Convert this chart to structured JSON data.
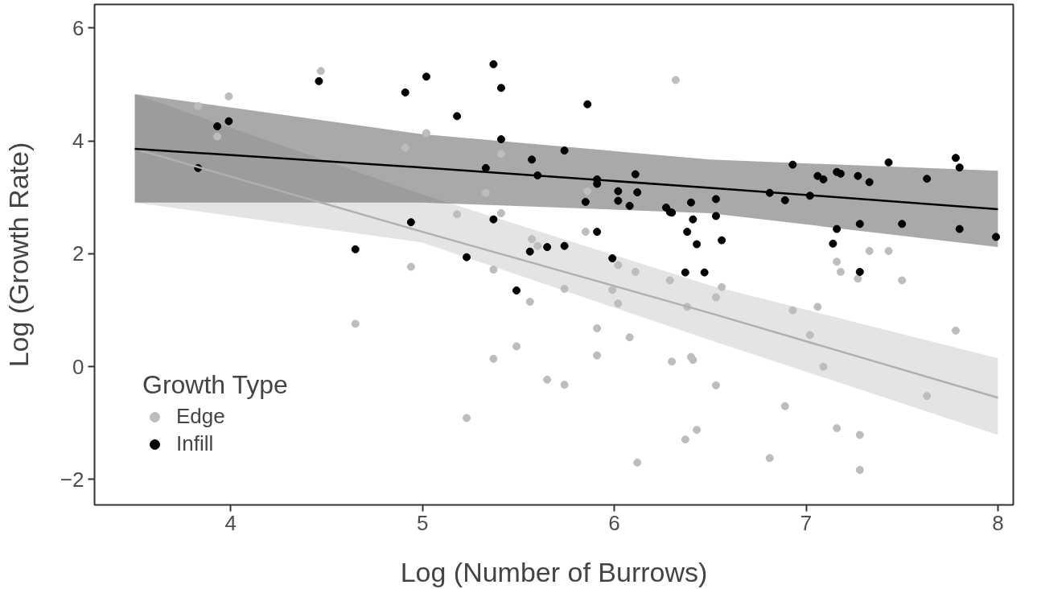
{
  "chart_data": {
    "type": "scatter",
    "xlabel": "Log (Number of Burrows)",
    "ylabel": "Log (Growth Rate)",
    "legend_title": "Growth Type",
    "xlim": [
      3.29,
      8.08
    ],
    "ylim": [
      -2.45,
      6.42
    ],
    "xticks": [
      4,
      5,
      6,
      7,
      8
    ],
    "yticks": [
      -2,
      0,
      2,
      4,
      6
    ],
    "grid": false,
    "legend": "bottom left",
    "marker": "circle",
    "series": [
      {
        "name": "Edge",
        "color": "#bdbdbd",
        "x": [
          4.47,
          3.99,
          3.83,
          3.93,
          4.65,
          4.91,
          5.02,
          5.41,
          5.33,
          5.86,
          6.32,
          5.18,
          5.41,
          4.94,
          5.37,
          5.57,
          5.6,
          5.85,
          6.02,
          6.11,
          6.29,
          5.74,
          5.99,
          5.56,
          6.02,
          6.38,
          5.91,
          6.08,
          5.49,
          5.37,
          5.91,
          6.3,
          6.4,
          6.41,
          5.65,
          5.74,
          5.23,
          6.37,
          6.43,
          6.12,
          7.33,
          7.43,
          7.16,
          7.18,
          7.27,
          7.5,
          6.56,
          6.53,
          6.93,
          7.06,
          7.02,
          7.09,
          7.78,
          6.53,
          6.89,
          7.63,
          7.16,
          7.28,
          6.81,
          7.28
        ],
        "values": [
          5.24,
          4.79,
          4.62,
          4.08,
          0.76,
          3.88,
          4.14,
          3.77,
          3.08,
          3.11,
          5.08,
          2.7,
          2.72,
          1.77,
          1.72,
          2.26,
          2.14,
          2.39,
          1.8,
          1.68,
          1.53,
          1.38,
          1.36,
          1.15,
          1.12,
          1.06,
          0.68,
          0.52,
          0.36,
          0.14,
          0.2,
          0.09,
          0.17,
          0.12,
          -0.23,
          -0.32,
          -0.91,
          -1.29,
          -1.12,
          -1.7,
          2.05,
          2.05,
          1.86,
          1.68,
          1.56,
          1.53,
          1.41,
          1.23,
          1.0,
          1.06,
          0.56,
          0.0,
          0.64,
          -0.33,
          -0.7,
          -0.52,
          -1.09,
          -1.21,
          -1.62,
          -1.83
        ]
      },
      {
        "name": "Infill",
        "color": "#000000",
        "x": [
          4.46,
          3.99,
          3.93,
          3.83,
          4.65,
          5.37,
          5.02,
          4.91,
          5.41,
          5.18,
          5.86,
          5.41,
          5.33,
          5.57,
          5.6,
          5.74,
          5.91,
          5.91,
          5.85,
          6.02,
          6.02,
          6.08,
          6.11,
          6.12,
          6.27,
          6.29,
          6.3,
          6.4,
          6.41,
          6.38,
          6.43,
          6.37,
          6.47,
          5.91,
          5.99,
          5.37,
          5.49,
          4.94,
          5.23,
          5.56,
          5.65,
          5.74,
          6.93,
          6.53,
          6.53,
          6.56,
          6.81,
          6.89,
          7.02,
          7.06,
          7.09,
          7.16,
          7.18,
          7.27,
          7.33,
          7.43,
          7.63,
          7.78,
          7.8,
          7.99,
          7.16,
          7.14,
          7.28,
          7.5,
          7.8,
          7.28
        ],
        "values": [
          5.06,
          4.35,
          4.26,
          3.52,
          2.08,
          5.36,
          5.14,
          4.86,
          4.94,
          4.44,
          4.65,
          4.03,
          3.52,
          3.67,
          3.39,
          3.83,
          3.32,
          3.24,
          2.92,
          3.11,
          2.94,
          2.85,
          3.41,
          3.09,
          2.82,
          2.74,
          2.73,
          2.91,
          2.61,
          2.39,
          2.17,
          1.67,
          1.67,
          2.39,
          1.92,
          2.61,
          1.35,
          2.56,
          1.94,
          2.04,
          2.12,
          2.14,
          3.58,
          2.97,
          2.67,
          2.24,
          3.08,
          2.95,
          3.03,
          3.38,
          3.32,
          3.45,
          3.42,
          3.38,
          3.27,
          3.62,
          3.33,
          3.7,
          3.53,
          2.3,
          2.44,
          2.18,
          2.53,
          2.53,
          2.44,
          1.68
        ]
      },
      {
        "type": "line",
        "marker": "none",
        "color": "#b0b0b0",
        "x": [
          3.5,
          5,
          6.5,
          8
        ],
        "values": [
          3.86,
          2.39,
          0.95,
          -0.55
        ],
        "lower": [
          2.91,
          2.2,
          0.47,
          -1.21
        ],
        "upper": [
          4.83,
          3.05,
          1.44,
          0.15
        ]
      },
      {
        "type": "line",
        "marker": "none",
        "color": "#000000",
        "x": [
          3.5,
          5,
          6.5,
          8
        ],
        "values": [
          3.86,
          3.53,
          3.17,
          2.79
        ],
        "lower": [
          2.91,
          2.91,
          2.72,
          2.12
        ],
        "upper": [
          4.83,
          4.12,
          3.67,
          3.47
        ]
      }
    ]
  }
}
